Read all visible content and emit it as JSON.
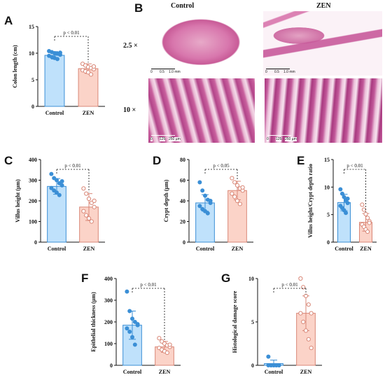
{
  "panels": {
    "a": "A",
    "b": "B",
    "c": "C",
    "d": "D",
    "e": "E",
    "f": "F",
    "g": "G"
  },
  "micrographs": {
    "col_control": "Control",
    "col_zen": "ZEN",
    "row_low": "2.5 ×",
    "row_high": "10 ×",
    "scale_low": [
      "0",
      "0.5",
      "1.0 mm"
    ],
    "scale_high": [
      "0",
      "125",
      "250 µm"
    ]
  },
  "colors": {
    "control_fill": "#bfe1fb",
    "control_edge": "#3b8fd6",
    "zen_fill": "#fbd3c8",
    "zen_edge": "#d98777"
  },
  "chart_data": [
    {
      "id": "A",
      "type": "bar",
      "categories": [
        "Control",
        "ZEN"
      ],
      "values": [
        9.6,
        7.1
      ],
      "errors": [
        0.7,
        0.9
      ],
      "points": [
        [
          10.4,
          10.2,
          10.0,
          9.9,
          9.7,
          9.5,
          9.3,
          9.1,
          8.9,
          10.1
        ],
        [
          8.0,
          7.7,
          7.4,
          7.2,
          7.0,
          6.8,
          6.6,
          6.4,
          6.0,
          7.5
        ]
      ],
      "ylabel": "Colon length (cm)",
      "ylim": [
        0,
        15
      ],
      "yticks": [
        0,
        5,
        10,
        15
      ],
      "annotation": "p < 0.01"
    },
    {
      "id": "C",
      "type": "bar",
      "categories": [
        "Control",
        "ZEN"
      ],
      "values": [
        270,
        170
      ],
      "errors": [
        38,
        65
      ],
      "points": [
        [
          330,
          310,
          300,
          285,
          275,
          262,
          250,
          240,
          228,
          295
        ],
        [
          260,
          235,
          210,
          190,
          170,
          150,
          130,
          115,
          100,
          200
        ]
      ],
      "ylabel": "Villus height (µm)",
      "ylim": [
        0,
        400
      ],
      "yticks": [
        0,
        100,
        200,
        300,
        400
      ],
      "annotation": "p < 0.01"
    },
    {
      "id": "D",
      "type": "bar",
      "categories": [
        "Control",
        "ZEN"
      ],
      "values": [
        38,
        50
      ],
      "errors": [
        8,
        9
      ],
      "points": [
        [
          58,
          50,
          45,
          41,
          38,
          35,
          32,
          30,
          28,
          40
        ],
        [
          62,
          58,
          55,
          52,
          50,
          47,
          44,
          40,
          37,
          53
        ]
      ],
      "ylabel": "Crypt depth (µm)",
      "ylim": [
        0,
        80
      ],
      "yticks": [
        0,
        20,
        40,
        60,
        80
      ],
      "annotation": "p < 0.05"
    },
    {
      "id": "E",
      "type": "bar",
      "categories": [
        "Control",
        "ZEN"
      ],
      "values": [
        7.2,
        3.6
      ],
      "errors": [
        1.5,
        1.6
      ],
      "points": [
        [
          9.6,
          8.8,
          8.2,
          7.6,
          7.1,
          6.6,
          6.2,
          5.8,
          5.3,
          7.9
        ],
        [
          6.8,
          5.9,
          5.1,
          4.4,
          3.8,
          3.2,
          2.8,
          2.3,
          1.9,
          3.5
        ]
      ],
      "ylabel": "Villus height/Crypt depth ratio",
      "ylim": [
        0,
        15
      ],
      "yticks": [
        0,
        5,
        10,
        15
      ],
      "annotation": "p < 0.01"
    },
    {
      "id": "F",
      "type": "bar",
      "categories": [
        "Control",
        "ZEN"
      ],
      "values": [
        185,
        85
      ],
      "errors": [
        65,
        25
      ],
      "points": [
        [
          340,
          250,
          215,
          200,
          185,
          170,
          155,
          130,
          95,
          190
        ],
        [
          125,
          110,
          100,
          92,
          85,
          80,
          72,
          65,
          58,
          95
        ]
      ],
      "ylabel": "Epithelial thickness (µm)",
      "ylim": [
        0,
        400
      ],
      "yticks": [
        0,
        100,
        200,
        300,
        400
      ],
      "annotation": "p < 0.01"
    },
    {
      "id": "G",
      "type": "bar",
      "categories": [
        "Control",
        "ZEN"
      ],
      "values": [
        0.2,
        6.0
      ],
      "errors": [
        0.4,
        2.0
      ],
      "points": [
        [
          1.0,
          0.0,
          0.0,
          0.0,
          0.0,
          0.0,
          0.0,
          0.0,
          0.0,
          0.0
        ],
        [
          10.0,
          9.0,
          8.0,
          7.0,
          6.0,
          6.0,
          5.0,
          4.0,
          3.0,
          2.0
        ]
      ],
      "ylabel": "Histological damage score",
      "ylim": [
        0,
        10
      ],
      "yticks": [
        0,
        5,
        10
      ],
      "annotation": "p < 0.01"
    }
  ]
}
